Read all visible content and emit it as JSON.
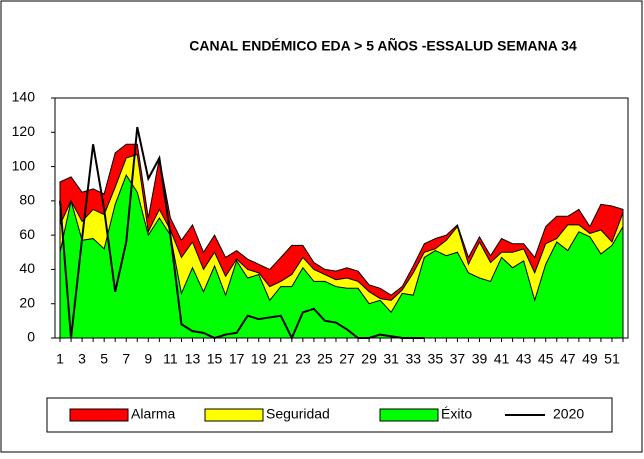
{
  "chart_data": {
    "type": "area",
    "title": "CANAL ENDÉMICO EDA > 5 AÑOS -ESSALUD SEMANA 34",
    "categories": [
      "1",
      null,
      "3",
      null,
      "5",
      null,
      "7",
      null,
      "9",
      null,
      "11",
      null,
      "13",
      null,
      "15",
      null,
      "17",
      null,
      "19",
      null,
      "21",
      null,
      "23",
      null,
      "25",
      null,
      "27",
      null,
      "29",
      null,
      "31",
      null,
      "33",
      null,
      "35",
      null,
      "37",
      null,
      "39",
      null,
      "41",
      null,
      "43",
      null,
      "45",
      null,
      "47",
      null,
      "49",
      null,
      "51",
      null
    ],
    "series": [
      {
        "name": "Alarma",
        "color": "#ff0000",
        "values": [
          91,
          94,
          85,
          87,
          84,
          108,
          113,
          113,
          70,
          105,
          70,
          57,
          66,
          50,
          60,
          47,
          51,
          46,
          43,
          40,
          47,
          54,
          54,
          44,
          40,
          39,
          41,
          39,
          31,
          29,
          25,
          30,
          42,
          55,
          58,
          60,
          66,
          47,
          59,
          48,
          58,
          55,
          55,
          47,
          65,
          71,
          71,
          75,
          65,
          78,
          77,
          75
        ]
      },
      {
        "name": "Seguridad",
        "color": "#ffff00",
        "values": [
          66,
          80,
          68,
          75,
          72,
          88,
          105,
          107,
          62,
          75,
          63,
          47,
          56,
          40,
          50,
          36,
          46,
          40,
          38,
          30,
          33,
          37,
          47,
          40,
          37,
          34,
          35,
          33,
          27,
          23,
          22,
          28,
          38,
          50,
          52,
          57,
          65,
          43,
          56,
          44,
          50,
          50,
          52,
          38,
          55,
          58,
          66,
          66,
          61,
          63,
          56,
          73
        ]
      },
      {
        "name": "Éxito",
        "color": "#00ff00",
        "values": [
          50,
          80,
          57,
          58,
          52,
          78,
          95,
          85,
          60,
          70,
          60,
          26,
          41,
          27,
          42,
          25,
          45,
          35,
          37,
          22,
          30,
          30,
          41,
          33,
          33,
          30,
          29,
          29,
          20,
          22,
          15,
          26,
          25,
          47,
          51,
          48,
          50,
          38,
          35,
          33,
          47,
          41,
          45,
          22,
          43,
          56,
          51,
          62,
          59,
          49,
          54,
          65
        ]
      },
      {
        "name": "2020",
        "color": "#000000",
        "values": [
          80,
          0,
          58,
          113,
          75,
          27,
          56,
          123,
          93,
          105,
          60,
          8,
          4,
          3,
          0,
          2,
          3,
          13,
          11,
          12,
          13,
          0,
          15,
          17,
          10,
          9,
          5,
          0,
          0,
          2,
          1,
          0,
          0,
          0,
          null,
          null,
          null,
          null,
          null,
          null,
          null,
          null,
          null,
          null,
          null,
          null,
          null,
          null,
          null,
          null,
          null,
          null
        ]
      }
    ],
    "ylim": [
      0,
      140
    ],
    "yticks": [
      0,
      20,
      40,
      60,
      80,
      100,
      120,
      140
    ]
  }
}
